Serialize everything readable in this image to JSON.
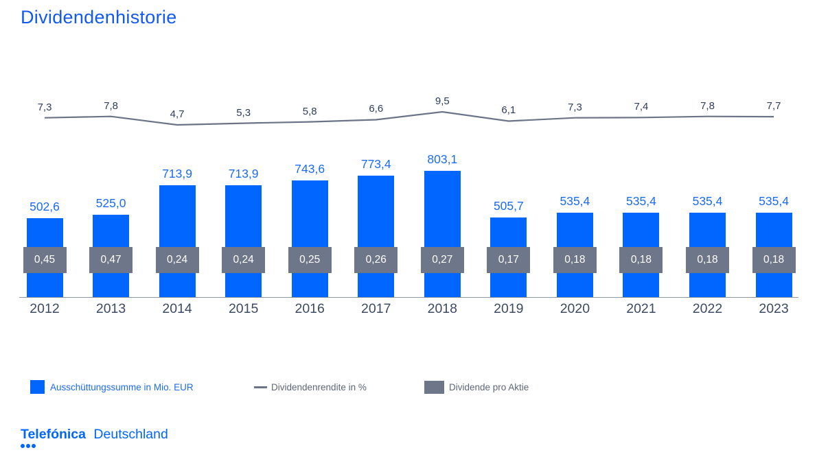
{
  "title": "Dividendenhistorie",
  "colors": {
    "title_blue": "#115af2",
    "bar_blue": "#0066ff",
    "bar_label_blue": "#1a6bfc",
    "line_gray": "#6b7487",
    "box_gray": "#6e7689",
    "line_label": "#2e3c5c",
    "year_label": "#3d4a63",
    "legend_text": "#5d6678",
    "axis_line": "#8f96a3",
    "logo_blue": "#0066ff"
  },
  "chart_data": {
    "type": "bar",
    "title": "Dividendenhistorie",
    "categories": [
      "2012",
      "2013",
      "2014",
      "2015",
      "2016",
      "2017",
      "2018",
      "2019",
      "2020",
      "2021",
      "2022",
      "2023"
    ],
    "series": [
      {
        "name": "Ausschüttungssumme in Mio. EUR",
        "type": "bar",
        "values": [
          502.6,
          525.0,
          713.9,
          713.9,
          743.6,
          773.4,
          803.1,
          505.7,
          535.4,
          535.4,
          535.4,
          535.4
        ],
        "labels": [
          "502,6",
          "525,0",
          "713,9",
          "713,9",
          "743,6",
          "773,4",
          "803,1",
          "505,7",
          "535,4",
          "535,4",
          "535,4",
          "535,4"
        ],
        "color": "#0066ff"
      },
      {
        "name": "Dividendenrendite in %",
        "type": "line",
        "values": [
          7.3,
          7.8,
          4.7,
          5.3,
          5.8,
          6.6,
          9.5,
          6.1,
          7.3,
          7.4,
          7.8,
          7.7
        ],
        "labels": [
          "7,3",
          "7,8",
          "4,7",
          "5,3",
          "5,8",
          "6,6",
          "9,5",
          "6,1",
          "7,3",
          "7,4",
          "7,8",
          "7,7"
        ],
        "color": "#6b7487"
      },
      {
        "name": "Dividende pro Aktie",
        "type": "overlay-box",
        "values": [
          0.45,
          0.47,
          0.24,
          0.24,
          0.25,
          0.26,
          0.27,
          0.17,
          0.18,
          0.18,
          0.18,
          0.18
        ],
        "labels": [
          "0,45",
          "0,47",
          "0,24",
          "0,24",
          "0,25",
          "0,26",
          "0,27",
          "0,17",
          "0,18",
          "0,18",
          "0,18",
          "0,18"
        ],
        "color": "#6e7689"
      }
    ],
    "legend_position": "bottom",
    "grid": false,
    "xlabel": "",
    "ylabel": ""
  },
  "legend": {
    "items": [
      {
        "swatch": "square-blue",
        "label": "Ausschüttungssumme in Mio. EUR"
      },
      {
        "swatch": "line-gray",
        "label": "Dividendenrendite in %"
      },
      {
        "swatch": "square-gray",
        "label": "Dividende pro Aktie"
      }
    ]
  },
  "footer": {
    "brand_bold": "Telefónica",
    "brand_regular": "Deutschland"
  }
}
